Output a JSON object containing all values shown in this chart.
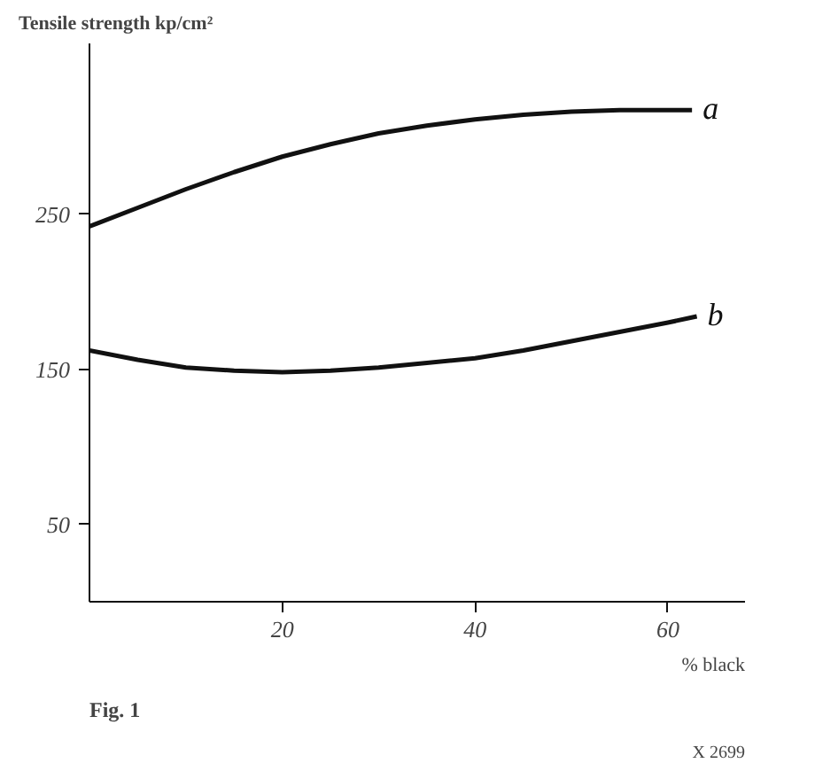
{
  "chart_data": {
    "type": "line",
    "ylabel": "Tensile strength kp/cm²",
    "xlabel": "% black",
    "xlim": [
      0,
      68
    ],
    "xticks": [
      20,
      40,
      60
    ],
    "ylim": [
      0,
      360
    ],
    "yticks": [
      50,
      150,
      250
    ],
    "grid": false,
    "marker": "none",
    "line_style": "solid",
    "series": [
      {
        "name": "a",
        "color": "#111111",
        "x": [
          0,
          5,
          10,
          15,
          20,
          25,
          30,
          35,
          40,
          45,
          50,
          55,
          60,
          62.5
        ],
        "values": [
          242,
          254,
          266,
          277,
          287,
          295,
          302,
          307,
          311,
          314,
          316,
          317,
          317,
          317
        ]
      },
      {
        "name": "b",
        "color": "#111111",
        "x": [
          0,
          5,
          10,
          15,
          20,
          25,
          30,
          35,
          40,
          45,
          50,
          55,
          60,
          63
        ],
        "values": [
          162,
          156,
          151,
          149,
          148,
          149,
          151,
          154,
          157,
          162,
          168,
          174,
          180,
          184
        ]
      }
    ],
    "annotations": [
      "Fig. 1",
      "X 2699"
    ]
  }
}
